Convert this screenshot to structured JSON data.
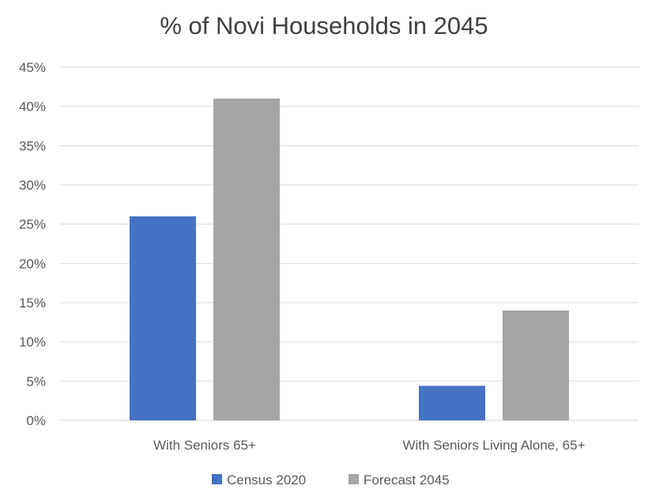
{
  "chart_data": {
    "type": "bar",
    "title": "% of Novi Households in 2045",
    "categories": [
      "With Seniors 65+",
      "With Seniors Living Alone, 65+"
    ],
    "series": [
      {
        "name": "Census 2020",
        "values": [
          26,
          4.4
        ],
        "color": "#4472C4"
      },
      {
        "name": "Forecast 2045",
        "values": [
          41,
          14
        ],
        "color": "#A5A5A5"
      }
    ],
    "y_ticks": [
      "0%",
      "5%",
      "10%",
      "15%",
      "20%",
      "25%",
      "30%",
      "35%",
      "40%",
      "45%"
    ],
    "ylim": [
      0,
      45
    ],
    "y_unit": "%",
    "grid": true,
    "legend_position": "bottom"
  }
}
